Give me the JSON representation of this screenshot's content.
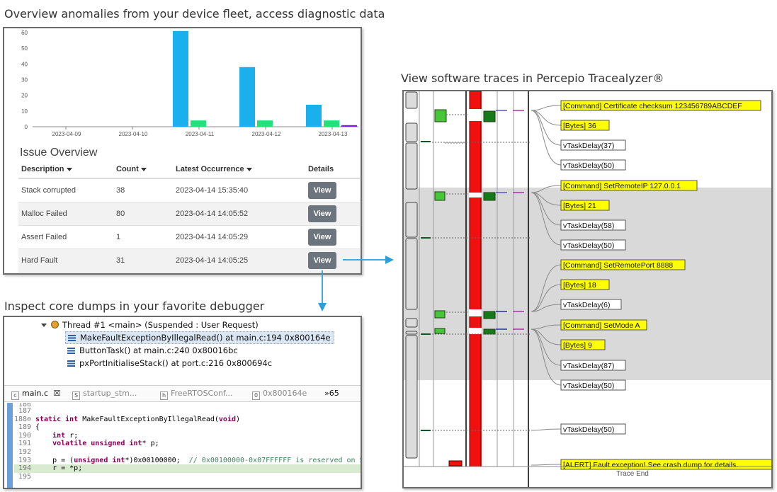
{
  "captions": {
    "dashboard": "Overview anomalies from your device fleet, access diagnostic data",
    "tracealyzer": "View software traces in Percepio Tracealyzer®",
    "debugger": "Inspect core dumps in your favorite debugger"
  },
  "colors": {
    "bar_primary": "#1ab0ee",
    "bar_secondary": "#22e27a",
    "bar_tertiary": "#7a1fe0",
    "trace_red": "#f01010",
    "label_yellow": "#ffff00",
    "button_grey": "#6c757d"
  },
  "chart_data": {
    "type": "bar",
    "categories": [
      "2023-04-09",
      "2023-04-10",
      "2023-04-11",
      "2023-04-12",
      "2023-04-13"
    ],
    "series": [
      {
        "values": [
          0,
          0,
          61,
          38,
          14
        ]
      },
      {
        "values": [
          0,
          0,
          4,
          4,
          4
        ]
      },
      {
        "values": [
          0,
          0,
          0,
          0,
          1
        ]
      }
    ],
    "yticks": [
      "60",
      "50",
      "40",
      "30",
      "20",
      "10",
      "0"
    ],
    "ylim": [
      0,
      60
    ],
    "grid": false,
    "title": "",
    "xlabel": "",
    "ylabel": ""
  },
  "issues": {
    "title": "Issue Overview",
    "columns": {
      "description": "Description",
      "count": "Count",
      "latest": "Latest Occurrence",
      "details": "Details"
    },
    "view_label": "View",
    "rows": [
      {
        "description": "Stack corrupted",
        "count": "38",
        "latest": "2023-04-14 15:35:40"
      },
      {
        "description": "Malloc Failed",
        "count": "80",
        "latest": "2023-04-14 14:05:52"
      },
      {
        "description": "Assert Failed",
        "count": "1",
        "latest": "2023-04-14 14:05:29"
      },
      {
        "description": "Hard Fault",
        "count": "31",
        "latest": "2023-04-14 14:05:25"
      }
    ]
  },
  "debugger": {
    "thread": "Thread #1 <main> (Suspended : User Request)",
    "frames": [
      "MakeFaultExceptionByIllegalRead() at main.c:194 0x800164e",
      "ButtonTask() at main.c:240 0x80016bc",
      "pxPortInitialiseStack() at port.c:216 0x800694c"
    ],
    "tabs": [
      "main.c",
      "startup_stm...",
      "FreeRTOSConf...",
      "0x800164e"
    ],
    "tabs_overflow": "»65",
    "code": [
      {
        "ln": "186",
        "text": ""
      },
      {
        "ln": "187",
        "text": ""
      },
      {
        "ln": "188⊖",
        "pre": "",
        "kw": "static int",
        "post": " MakeFaultExceptionByIllegalRead(",
        "kw2": "void",
        "post2": ")"
      },
      {
        "ln": "189",
        "text": "{"
      },
      {
        "ln": "190",
        "pre": "    ",
        "kw": "int",
        "post": " r;"
      },
      {
        "ln": "191",
        "pre": "    ",
        "kw": "volatile unsigned int",
        "post": "* p;"
      },
      {
        "ln": "192",
        "text": ""
      },
      {
        "ln": "193",
        "pre": "    p = (",
        "kw": "unsigned int",
        "post": "*)0x00100000;  ",
        "cm": "// 0x00100000-0x07FFFFFF is reserved on S"
      },
      {
        "ln": "194",
        "text": "    r = *p;"
      },
      {
        "ln": "195",
        "text": ""
      }
    ]
  },
  "trace": {
    "labels": [
      {
        "text": "[Command] Certificate checksum 123456789ABCDEF",
        "yellow": true
      },
      {
        "text": "[Bytes] 36",
        "yellow": true
      },
      {
        "text": "vTaskDelay(37)",
        "yellow": false
      },
      {
        "text": "vTaskDelay(50)",
        "yellow": false
      },
      {
        "text": "[Command] SetRemoteIP 127.0.0.1",
        "yellow": true
      },
      {
        "text": "[Bytes] 21",
        "yellow": true
      },
      {
        "text": "vTaskDelay(58)",
        "yellow": false
      },
      {
        "text": "vTaskDelay(50)",
        "yellow": false
      },
      {
        "text": "[Command] SetRemotePort 8888",
        "yellow": true
      },
      {
        "text": "[Bytes] 18",
        "yellow": true
      },
      {
        "text": "vTaskDelay(6)",
        "yellow": false
      },
      {
        "text": "[Command] SetMode A",
        "yellow": true
      },
      {
        "text": "[Bytes] 9",
        "yellow": true
      },
      {
        "text": "vTaskDelay(87)",
        "yellow": false
      },
      {
        "text": "vTaskDelay(50)",
        "yellow": false
      },
      {
        "text": "vTaskDelay(50)",
        "yellow": false
      },
      {
        "text": "[ALERT] Fault exception! See crash dump for details.",
        "yellow": true
      }
    ],
    "trace_end": "Trace End"
  }
}
